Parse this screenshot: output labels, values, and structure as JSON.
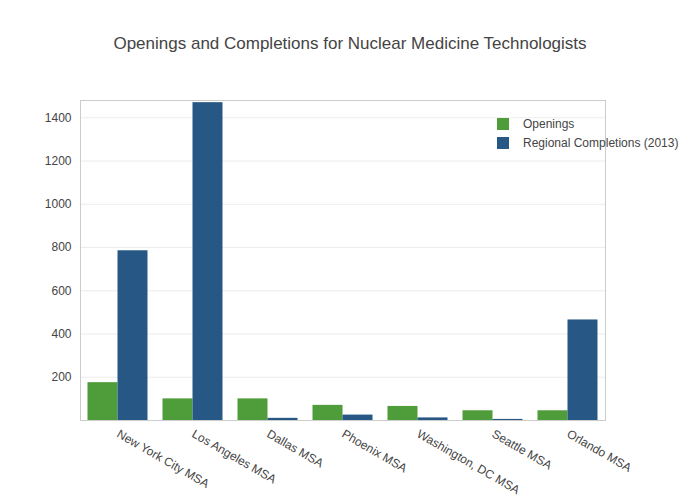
{
  "chart_data": {
    "type": "bar",
    "title": "Openings and Completions for Nuclear Medicine Technologists",
    "categories": [
      "New York City MSA",
      "Los Angeles MSA",
      "Dallas MSA",
      "Phoenix MSA",
      "Washington, DC MSA",
      "Seattle MSA",
      "Orlando MSA"
    ],
    "series": [
      {
        "name": "Openings",
        "color": "#4f9d3a",
        "values": [
          175,
          100,
          100,
          70,
          65,
          45,
          45
        ]
      },
      {
        "name": "Regional Completions (2013)",
        "color": "#265785",
        "values": [
          785,
          1470,
          10,
          25,
          12,
          5,
          465
        ]
      }
    ],
    "ylim": [
      0,
      1480
    ],
    "yticks": [
      200,
      400,
      600,
      800,
      1000,
      1200,
      1400
    ],
    "grid": true,
    "legend": "top-right"
  }
}
